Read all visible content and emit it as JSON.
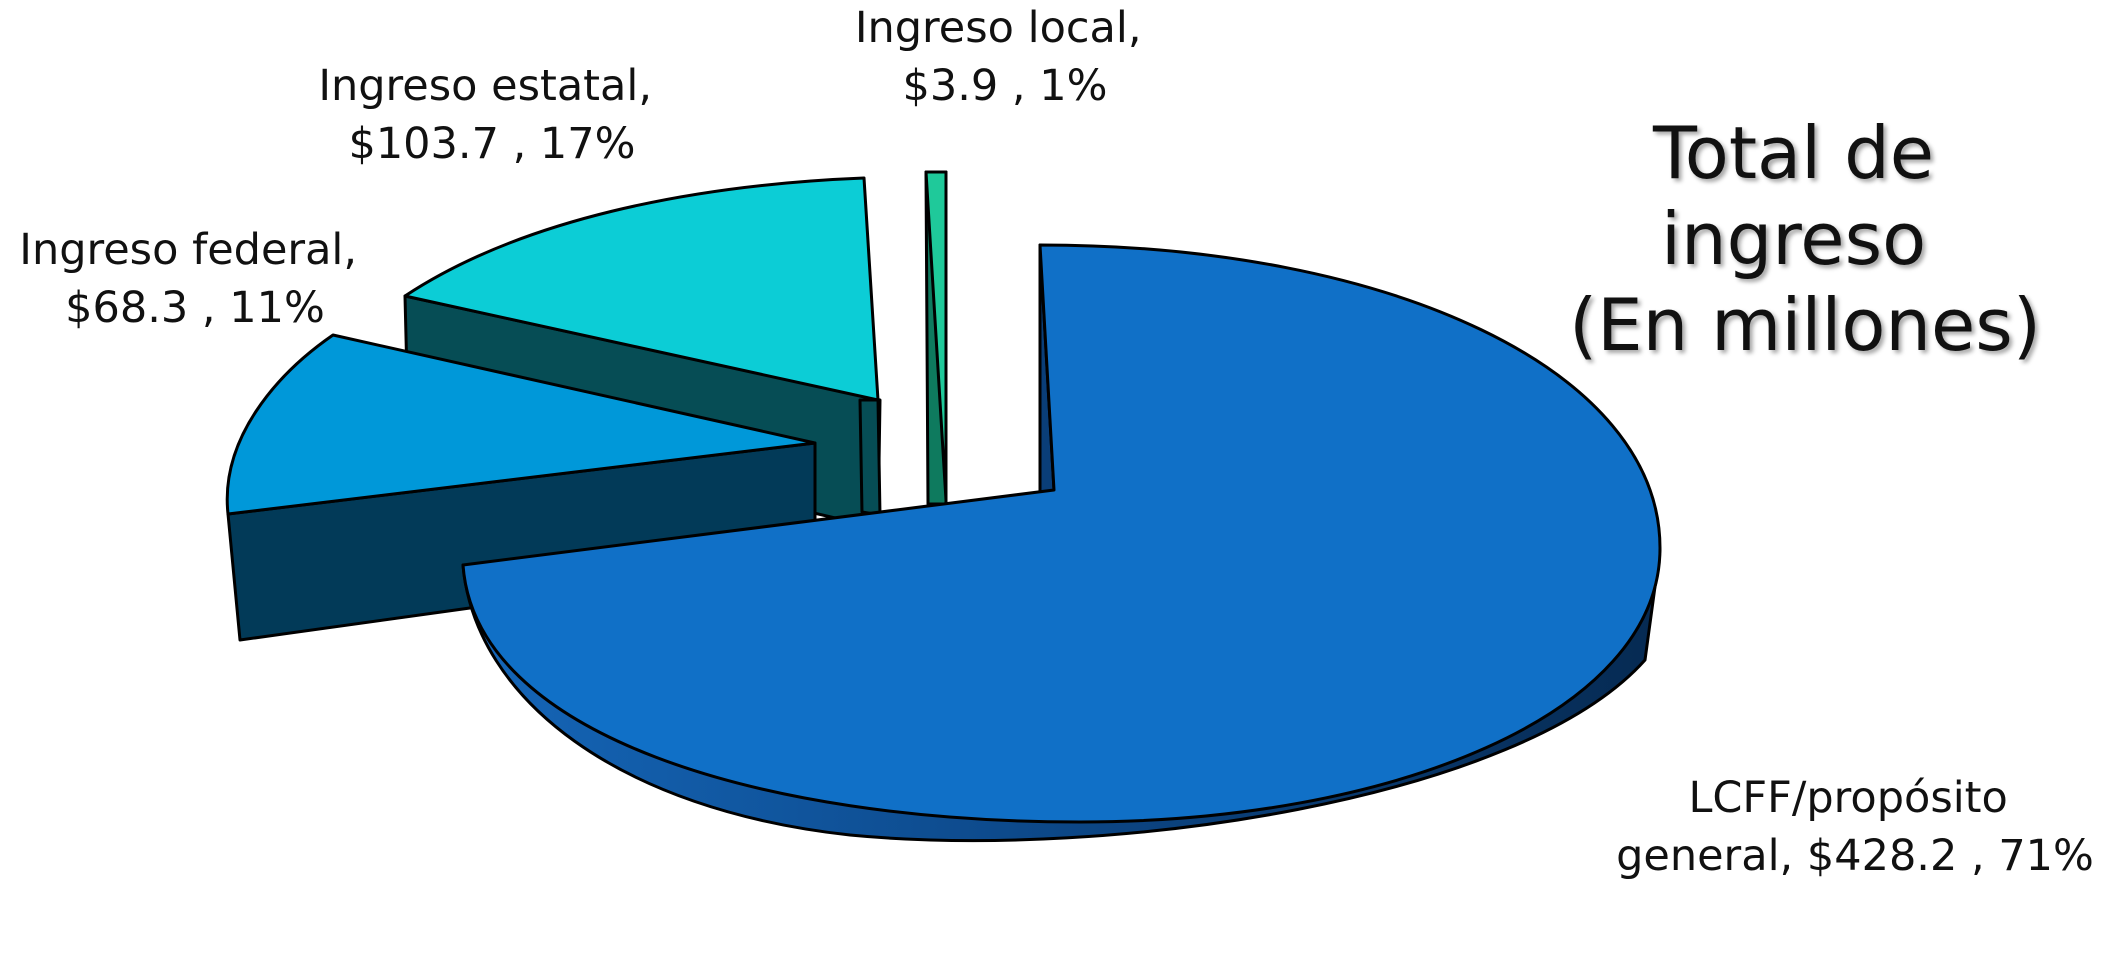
{
  "chart_data": {
    "type": "pie",
    "title": [
      "Total de",
      "ingreso",
      "(En millones)"
    ],
    "slices": [
      {
        "name": "LCFF/propósito general",
        "label_lines": [
          "LCFF/propósito",
          "general, $428.2 , 71%"
        ],
        "value": 428.2,
        "percent": 71,
        "color": "#1070C7"
      },
      {
        "name": "Ingreso federal",
        "label_lines": [
          "Ingreso federal,",
          "$68.3 , 11%"
        ],
        "value": 68.3,
        "percent": 11,
        "color": "#0098D9"
      },
      {
        "name": "Ingreso estatal",
        "label_lines": [
          "Ingreso estatal,",
          "$103.7 , 17%"
        ],
        "value": 103.7,
        "percent": 17,
        "color": "#0CCDD6"
      },
      {
        "name": "Ingreso local",
        "label_lines": [
          "Ingreso local,",
          "$3.9 , 1%"
        ],
        "value": 3.9,
        "percent": 1,
        "color": "#1FC99A"
      }
    ],
    "legend": "none",
    "style": "3d-exploded"
  }
}
